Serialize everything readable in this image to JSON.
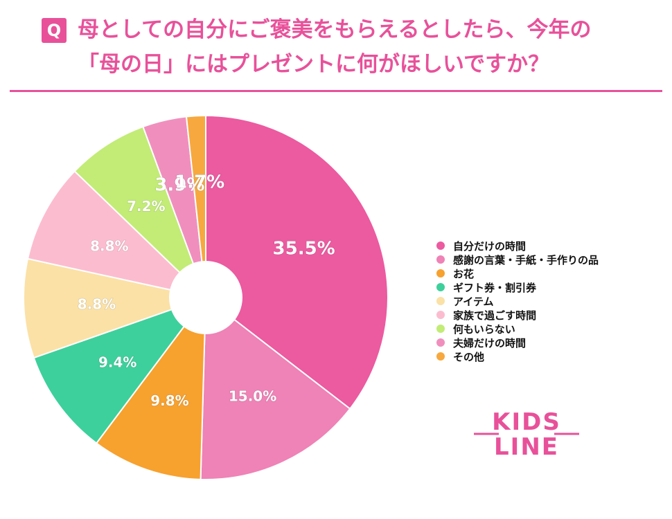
{
  "header": {
    "q_label": "Q",
    "title_line1": "母としての自分にご褒美をもらえるとしたら、今年の",
    "title_line2": "「母の日」にはプレゼントに何がほしいですか？"
  },
  "chart_data": {
    "type": "pie",
    "donut": true,
    "categories": [
      "自分だけの時間",
      "感謝の言葉・手紙・手作りの品",
      "お花",
      "ギフト券・割引券",
      "アイテム",
      "家族で過ごす時間",
      "何もいらない",
      "夫婦だけの時間",
      "その他"
    ],
    "values": [
      35.5,
      15.0,
      9.8,
      9.4,
      8.8,
      8.8,
      7.2,
      3.9,
      1.7
    ],
    "value_labels": [
      "35.5%",
      "15.0%",
      "9.8%",
      "9.4%",
      "8.8%",
      "8.8%",
      "7.2%",
      "3.9%",
      "1.7%"
    ],
    "colors": [
      "#ec5aa0",
      "#ef82b6",
      "#f7a12e",
      "#3dd09c",
      "#fbe1a6",
      "#fcbccf",
      "#c2ec76",
      "#f08fbd",
      "#f7a83e"
    ],
    "legend_position": "right"
  },
  "logo": {
    "line1": "KIDS",
    "line2": "LINE"
  }
}
